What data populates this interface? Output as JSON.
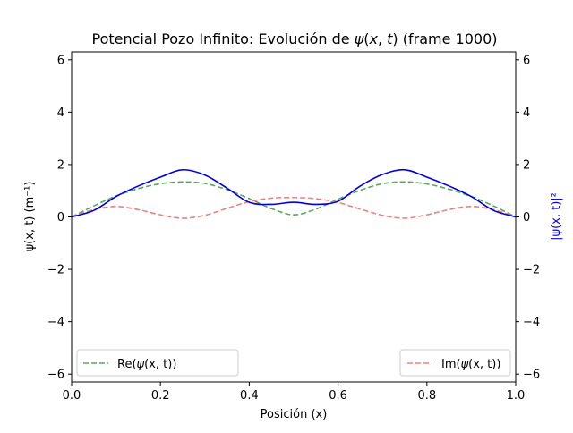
{
  "chart_data": {
    "type": "line",
    "title": "Potencial Pozo Infinito: Evolución de ψ(x, t) (frame 1000)",
    "title_parts": {
      "prefix": "Potencial Pozo Infinito: Evolución de ",
      "psi": "ψ",
      "args_open": "(",
      "var_x": "x",
      "comma": ", ",
      "var_t": "t",
      "args_close": ")",
      "suffix": " (frame 1000)"
    },
    "xlabel": "Posición (x)",
    "ylabel": "ψ(x, t) (m⁻¹)",
    "ylabel_right": "|ψ(x, t)|²",
    "xlim": [
      0.0,
      1.0
    ],
    "ylim": [
      -6.3,
      6.3
    ],
    "xticks": [
      "0.0",
      "0.2",
      "0.4",
      "0.6",
      "0.8",
      "1.0"
    ],
    "xtick_values": [
      0.0,
      0.2,
      0.4,
      0.6,
      0.8,
      1.0
    ],
    "yticks": [
      "−6",
      "−4",
      "−2",
      "0",
      "2",
      "4",
      "6"
    ],
    "ytick_values": [
      -6,
      -4,
      -2,
      0,
      2,
      4,
      6
    ],
    "grid": false,
    "legend_placement": "bottom-left and bottom-right",
    "x": [
      0.0,
      0.05,
      0.1,
      0.15,
      0.2,
      0.25,
      0.3,
      0.35,
      0.4,
      0.45,
      0.5,
      0.55,
      0.6,
      0.65,
      0.7,
      0.75,
      0.8,
      0.85,
      0.9,
      0.95,
      1.0
    ],
    "series": [
      {
        "name": "Re(ψ(x, t))",
        "legend_parts": {
          "prefix": "Re(",
          "psi": "ψ",
          "args": "(x, t)",
          "suffix": ")"
        },
        "style": "dashed",
        "color": "#5aa95a",
        "axis": "left",
        "values": [
          0.0,
          0.42,
          0.8,
          1.08,
          1.27,
          1.34,
          1.28,
          1.04,
          0.7,
          0.32,
          0.08,
          0.3,
          0.68,
          1.02,
          1.27,
          1.34,
          1.26,
          1.06,
          0.78,
          0.42,
          0.0
        ]
      },
      {
        "name": "Im(ψ(x, t))",
        "legend_parts": {
          "prefix": "Im(",
          "psi": "ψ",
          "args": "(x, t)",
          "suffix": ")"
        },
        "style": "dashed",
        "color": "#f08080",
        "axis": "left",
        "values": [
          0.0,
          0.28,
          0.4,
          0.28,
          0.08,
          -0.05,
          0.06,
          0.33,
          0.58,
          0.72,
          0.74,
          0.7,
          0.55,
          0.3,
          0.06,
          -0.05,
          0.08,
          0.28,
          0.4,
          0.28,
          0.0
        ]
      },
      {
        "style": "solid",
        "color": "#0000dd",
        "axis": "right",
        "values": [
          0.0,
          0.25,
          0.78,
          1.18,
          1.52,
          1.8,
          1.6,
          1.1,
          0.56,
          0.48,
          0.56,
          0.48,
          0.6,
          1.18,
          1.62,
          1.8,
          1.52,
          1.18,
          0.78,
          0.25,
          0.0
        ]
      }
    ]
  }
}
